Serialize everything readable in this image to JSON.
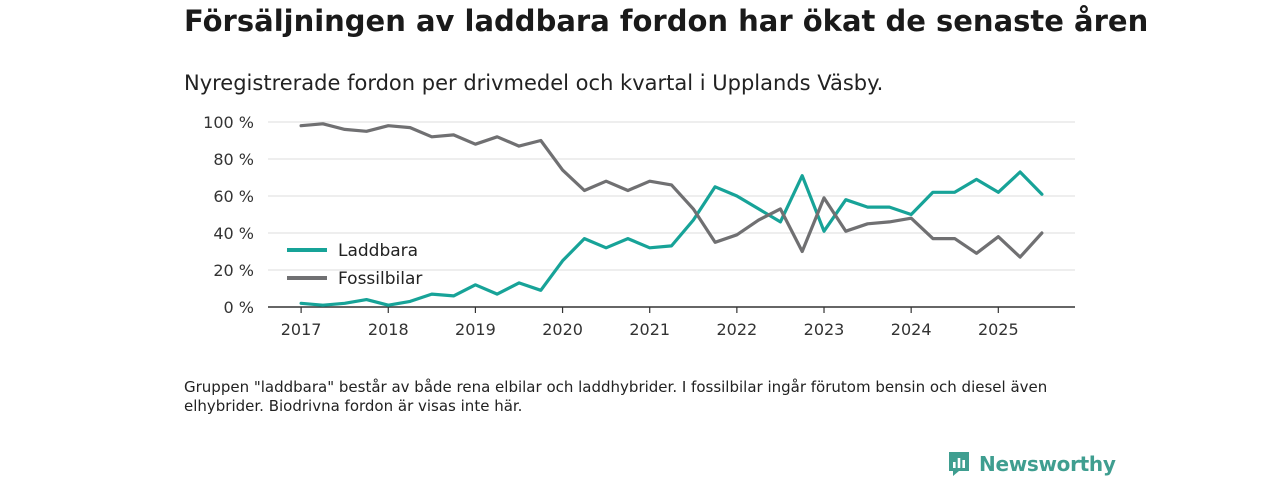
{
  "title": "Försäljningen av laddbara fordon har ökat de senaste åren",
  "subtitle": "Nyregistrerade fordon per drivmedel och kvartal i Upplands Väsby.",
  "note": "Gruppen \"laddbara\" består av både rena elbilar och laddhybrider. I fossilbilar ingår förutom bensin och diesel även elhybrider. Biodrivna fordon är visas inte här.",
  "brand": "Newsworthy",
  "chart_data": {
    "type": "line",
    "x": [
      2017.0,
      2017.25,
      2017.5,
      2017.75,
      2018.0,
      2018.25,
      2018.5,
      2018.75,
      2019.0,
      2019.25,
      2019.5,
      2019.75,
      2020.0,
      2020.25,
      2020.5,
      2020.75,
      2021.0,
      2021.25,
      2021.5,
      2021.75,
      2022.0,
      2022.25,
      2022.5,
      2022.75,
      2023.0,
      2023.25,
      2023.5,
      2023.75,
      2024.0,
      2024.25,
      2024.5,
      2024.75,
      2025.0,
      2025.25,
      2025.5
    ],
    "series": [
      {
        "name": "Laddbara",
        "color": "#17a398",
        "values": [
          2,
          1,
          2,
          4,
          1,
          3,
          7,
          6,
          12,
          7,
          13,
          9,
          25,
          37,
          32,
          37,
          32,
          33,
          47,
          65,
          60,
          53,
          46,
          71,
          41,
          58,
          54,
          54,
          50,
          62,
          62,
          69,
          62,
          73,
          61
        ]
      },
      {
        "name": "Fossilbilar",
        "color": "#707072",
        "values": [
          98,
          99,
          96,
          95,
          98,
          97,
          92,
          93,
          88,
          92,
          87,
          90,
          74,
          63,
          68,
          63,
          68,
          66,
          53,
          35,
          39,
          47,
          53,
          30,
          59,
          41,
          45,
          46,
          48,
          37,
          37,
          29,
          38,
          27,
          40
        ]
      }
    ],
    "xticks": [
      2017,
      2018,
      2019,
      2020,
      2021,
      2022,
      2023,
      2024,
      2025
    ],
    "xtick_labels": [
      "2017",
      "2018",
      "2019",
      "2020",
      "2021",
      "2022",
      "2023",
      "2024",
      "2025"
    ],
    "yticks": [
      0,
      20,
      40,
      60,
      80,
      100
    ],
    "ytick_labels": [
      "0 %",
      "20 %",
      "40 %",
      "60 %",
      "80 %",
      "100 %"
    ],
    "xlim": [
      2016.62,
      2025.88
    ],
    "ylim": [
      0,
      100
    ],
    "xlabel": "",
    "ylabel": "",
    "legend_position": "left",
    "grid": true
  }
}
